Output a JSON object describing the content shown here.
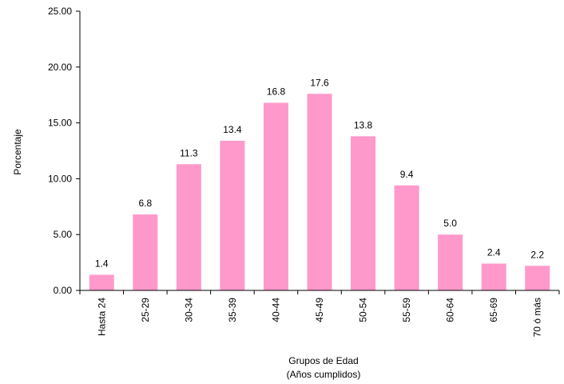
{
  "chart_data": {
    "type": "bar",
    "ylabel": "Porcentaje",
    "xlabel": "Grupos de Edad",
    "xlabel_sub": "(Años cumplidos)",
    "categories": [
      "Hasta 24",
      "25-29",
      "30-34",
      "35-39",
      "40-44",
      "45-49",
      "50-54",
      "55-59",
      "60-64",
      "65-69",
      "70 ó más"
    ],
    "values": [
      1.4,
      6.8,
      11.3,
      13.4,
      16.8,
      17.6,
      13.8,
      9.4,
      5.0,
      2.4,
      2.2
    ],
    "value_labels": [
      "1.4",
      "6.8",
      "11.3",
      "13.4",
      "16.8",
      "17.6",
      "13.8",
      "9.4",
      "5.0",
      "2.4",
      "2.2"
    ],
    "color": "#ff99cc",
    "ylim": [
      0,
      25
    ],
    "yticks": [
      {
        "value": 0,
        "label": "0.00"
      },
      {
        "value": 5,
        "label": "5.00"
      },
      {
        "value": 10,
        "label": "10.00"
      },
      {
        "value": 15,
        "label": "15.00"
      },
      {
        "value": 20,
        "label": "20.00"
      },
      {
        "value": 25,
        "label": "25.00"
      }
    ],
    "grid": false
  }
}
